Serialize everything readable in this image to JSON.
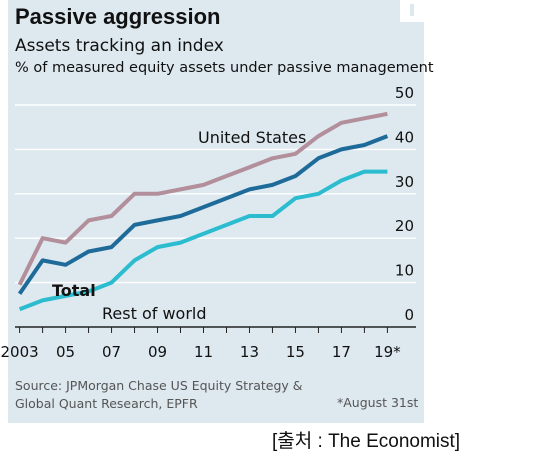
{
  "colors": {
    "background": "#dde8ef",
    "united_states": "#b28f9b",
    "total": "#1e6b9a",
    "rest_of_world": "#2bbcd0"
  },
  "title": "Passive aggression",
  "subtitle": "Assets tracking an index",
  "note": "% of measured equity assets under passive management",
  "source_line1": "Source: JPMorgan Chase US Equity Strategy &",
  "source_line2": "Global Quant Research, EPFR",
  "footnote": "*August 31st",
  "credit": "[출처 : The Economist]",
  "chart_data": {
    "type": "line",
    "title": "Passive aggression",
    "subtitle": "Assets tracking an index",
    "ylabel": "% of measured equity assets under passive management",
    "x": [
      2003,
      2004,
      2005,
      2006,
      2007,
      2008,
      2009,
      2010,
      2011,
      2012,
      2013,
      2014,
      2015,
      2016,
      2017,
      2018,
      2019
    ],
    "xlim": [
      2002.8,
      2019.2
    ],
    "ylim": [
      0,
      50
    ],
    "x_tick_values": [
      2003,
      2005,
      2007,
      2009,
      2011,
      2013,
      2015,
      2017,
      2019
    ],
    "x_tick_labels": [
      "2003",
      "05",
      "07",
      "09",
      "11",
      "13",
      "15",
      "17",
      "19*"
    ],
    "y_tick_values": [
      0,
      10,
      20,
      30,
      40,
      50
    ],
    "y_tick_labels": [
      "0",
      "10",
      "20",
      "30",
      "40",
      "50"
    ],
    "y_axis_side": "right",
    "grid": true,
    "legend": "inline labels",
    "series": [
      {
        "name": "United States",
        "color": "#b28f9b",
        "values": [
          9.5,
          20,
          19,
          24,
          25,
          30,
          30,
          31,
          32,
          34,
          36,
          38,
          39,
          43,
          46,
          47,
          48
        ]
      },
      {
        "name": "Total",
        "color": "#1e6b9a",
        "values": [
          7.5,
          15,
          14,
          17,
          18,
          23,
          24,
          25,
          27,
          29,
          31,
          32,
          34,
          38,
          40,
          41,
          43
        ]
      },
      {
        "name": "Rest of world",
        "color": "#2bbcd0",
        "values": [
          4,
          6,
          7,
          8,
          10,
          15,
          18,
          19,
          21,
          23,
          25,
          25,
          29,
          30,
          33,
          35,
          35
        ]
      }
    ]
  }
}
